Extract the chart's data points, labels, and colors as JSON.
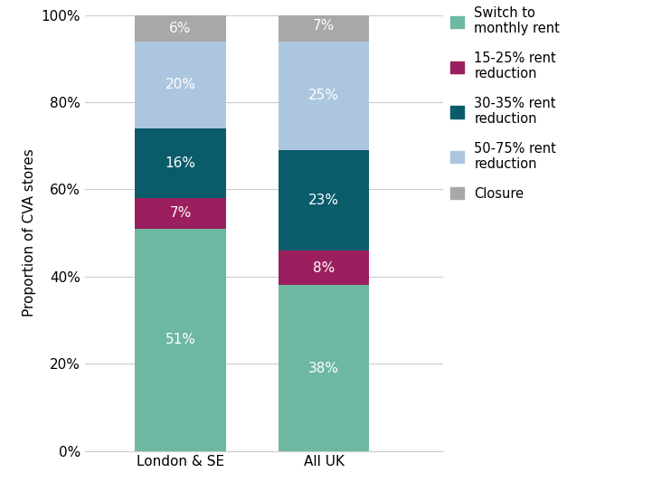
{
  "categories": [
    "London & SE",
    "All UK"
  ],
  "segments": [
    {
      "label": "Switch to\nmonthly rent",
      "color": "#6db8a3",
      "values": [
        51,
        38
      ]
    },
    {
      "label": "15-25% rent\nreduction",
      "color": "#9b1f5e",
      "values": [
        7,
        8
      ]
    },
    {
      "label": "30-35% rent\nreduction",
      "color": "#0a5c6b",
      "values": [
        16,
        23
      ]
    },
    {
      "label": "50-75% rent\nreduction",
      "color": "#adc6e0",
      "values": [
        20,
        25
      ]
    },
    {
      "label": "Closure",
      "color": "#a8a8a8",
      "values": [
        6,
        7
      ]
    }
  ],
  "ylabel": "Proportion of CVA stores",
  "ylim": [
    0,
    100
  ],
  "yticks": [
    0,
    20,
    40,
    60,
    80,
    100
  ],
  "ytick_labels": [
    "0%",
    "20%",
    "40%",
    "60%",
    "80%",
    "100%"
  ],
  "bar_width": 0.38,
  "bar_positions": [
    0.3,
    0.9
  ],
  "x_lim": [
    -0.1,
    1.4
  ],
  "text_color_white": "#ffffff",
  "background_color": "#ffffff",
  "grid_color": "#cccccc",
  "figsize": [
    7.21,
    5.54
  ],
  "dpi": 100,
  "label_fontsize": 11,
  "tick_fontsize": 11,
  "legend_fontsize": 10.5
}
